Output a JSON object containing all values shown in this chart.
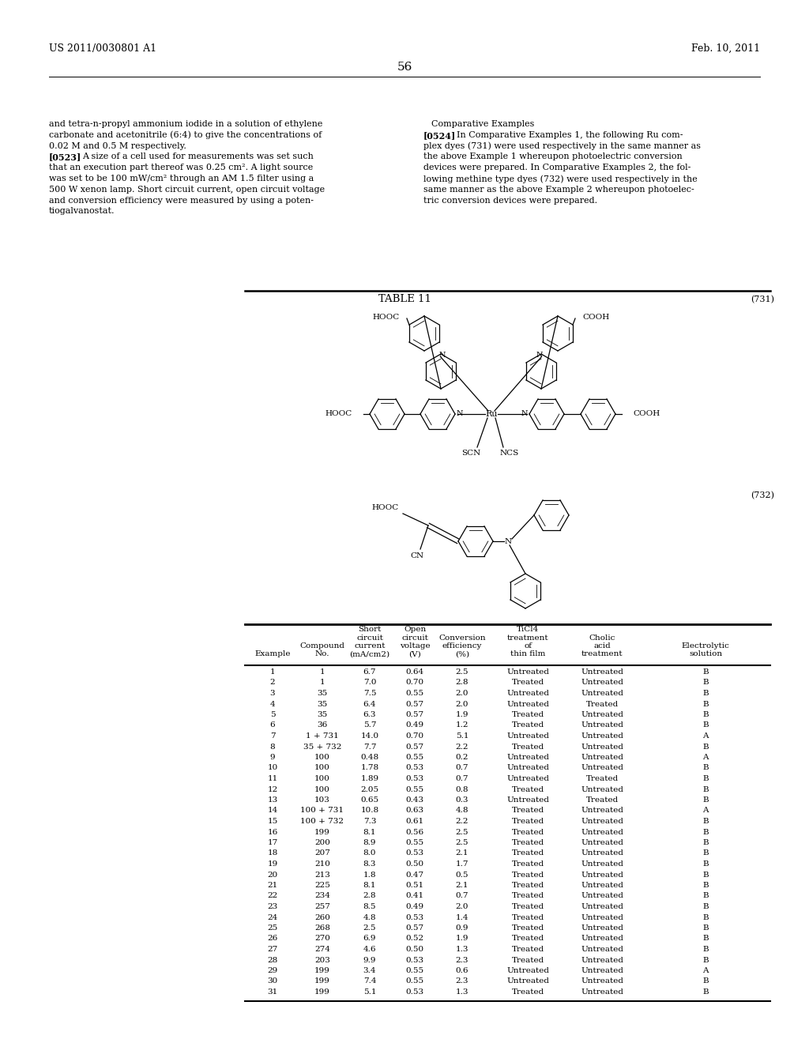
{
  "page_number": "56",
  "patent_number": "US 2011/0030801 A1",
  "patent_date": "Feb. 10, 2011",
  "left_col_text": [
    "and tetra-n-propyl ammonium iodide in a solution of ethylene",
    "carbonate and acetonitrile (6:4) to give the concentrations of",
    "0.02 M and 0.5 M respectively.",
    "[0523]",
    "that an execution part thereof was 0.25 cm². A light source",
    "was set to be 100 mW/cm² through an AM 1.5 filter using a",
    "500 W xenon lamp. Short circuit current, open circuit voltage",
    "and conversion efficiency were measured by using a poten-",
    "tiogalvanostat."
  ],
  "left_col_523_rest": "A size of a cell used for measurements was set such",
  "right_col_header": "Comparative Examples",
  "right_col_text": [
    "[0524]",
    "plex dyes (731) were used respectively in the same manner as",
    "the above Example 1 whereupon photoelectric conversion",
    "devices were prepared. In Comparative Examples 2, the fol-",
    "lowing methine type dyes (732) were used respectively in the",
    "same manner as the above Example 2 whereupon photoelec-",
    "tric conversion devices were prepared."
  ],
  "right_col_524_rest": "In Comparative Examples 1, the following Ru com-",
  "table_title": "TABLE 11",
  "compound_731_label": "(731)",
  "compound_732_label": "(732)",
  "table_data": [
    [
      1,
      "1",
      "6.7",
      "0.64",
      "2.5",
      "Untreated",
      "Untreated",
      "B"
    ],
    [
      2,
      "1",
      "7.0",
      "0.70",
      "2.8",
      "Treated",
      "Untreated",
      "B"
    ],
    [
      3,
      "35",
      "7.5",
      "0.55",
      "2.0",
      "Untreated",
      "Untreated",
      "B"
    ],
    [
      4,
      "35",
      "6.4",
      "0.57",
      "2.0",
      "Untreated",
      "Treated",
      "B"
    ],
    [
      5,
      "35",
      "6.3",
      "0.57",
      "1.9",
      "Treated",
      "Untreated",
      "B"
    ],
    [
      6,
      "36",
      "5.7",
      "0.49",
      "1.2",
      "Treated",
      "Untreated",
      "B"
    ],
    [
      7,
      "1 + 731",
      "14.0",
      "0.70",
      "5.1",
      "Untreated",
      "Untreated",
      "A"
    ],
    [
      8,
      "35 + 732",
      "7.7",
      "0.57",
      "2.2",
      "Treated",
      "Untreated",
      "B"
    ],
    [
      9,
      "100",
      "0.48",
      "0.55",
      "0.2",
      "Untreated",
      "Untreated",
      "A"
    ],
    [
      10,
      "100",
      "1.78",
      "0.53",
      "0.7",
      "Untreated",
      "Untreated",
      "B"
    ],
    [
      11,
      "100",
      "1.89",
      "0.53",
      "0.7",
      "Untreated",
      "Treated",
      "B"
    ],
    [
      12,
      "100",
      "2.05",
      "0.55",
      "0.8",
      "Treated",
      "Untreated",
      "B"
    ],
    [
      13,
      "103",
      "0.65",
      "0.43",
      "0.3",
      "Untreated",
      "Treated",
      "B"
    ],
    [
      14,
      "100 + 731",
      "10.8",
      "0.63",
      "4.8",
      "Treated",
      "Untreated",
      "A"
    ],
    [
      15,
      "100 + 732",
      "7.3",
      "0.61",
      "2.2",
      "Treated",
      "Untreated",
      "B"
    ],
    [
      16,
      "199",
      "8.1",
      "0.56",
      "2.5",
      "Treated",
      "Untreated",
      "B"
    ],
    [
      17,
      "200",
      "8.9",
      "0.55",
      "2.5",
      "Treated",
      "Untreated",
      "B"
    ],
    [
      18,
      "207",
      "8.0",
      "0.53",
      "2.1",
      "Treated",
      "Untreated",
      "B"
    ],
    [
      19,
      "210",
      "8.3",
      "0.50",
      "1.7",
      "Treated",
      "Untreated",
      "B"
    ],
    [
      20,
      "213",
      "1.8",
      "0.47",
      "0.5",
      "Treated",
      "Untreated",
      "B"
    ],
    [
      21,
      "225",
      "8.1",
      "0.51",
      "2.1",
      "Treated",
      "Untreated",
      "B"
    ],
    [
      22,
      "234",
      "2.8",
      "0.41",
      "0.7",
      "Treated",
      "Untreated",
      "B"
    ],
    [
      23,
      "257",
      "8.5",
      "0.49",
      "2.0",
      "Treated",
      "Untreated",
      "B"
    ],
    [
      24,
      "260",
      "4.8",
      "0.53",
      "1.4",
      "Treated",
      "Untreated",
      "B"
    ],
    [
      25,
      "268",
      "2.5",
      "0.57",
      "0.9",
      "Treated",
      "Untreated",
      "B"
    ],
    [
      26,
      "270",
      "6.9",
      "0.52",
      "1.9",
      "Treated",
      "Untreated",
      "B"
    ],
    [
      27,
      "274",
      "4.6",
      "0.50",
      "1.3",
      "Treated",
      "Untreated",
      "B"
    ],
    [
      28,
      "203",
      "9.9",
      "0.53",
      "2.3",
      "Treated",
      "Untreated",
      "B"
    ],
    [
      29,
      "199",
      "3.4",
      "0.55",
      "0.6",
      "Untreated",
      "Untreated",
      "A"
    ],
    [
      30,
      "199",
      "7.4",
      "0.55",
      "2.3",
      "Untreated",
      "Untreated",
      "B"
    ],
    [
      31,
      "199",
      "5.1",
      "0.53",
      "1.3",
      "Treated",
      "Untreated",
      "B"
    ]
  ],
  "bg_color": "#ffffff",
  "text_color": "#000000"
}
